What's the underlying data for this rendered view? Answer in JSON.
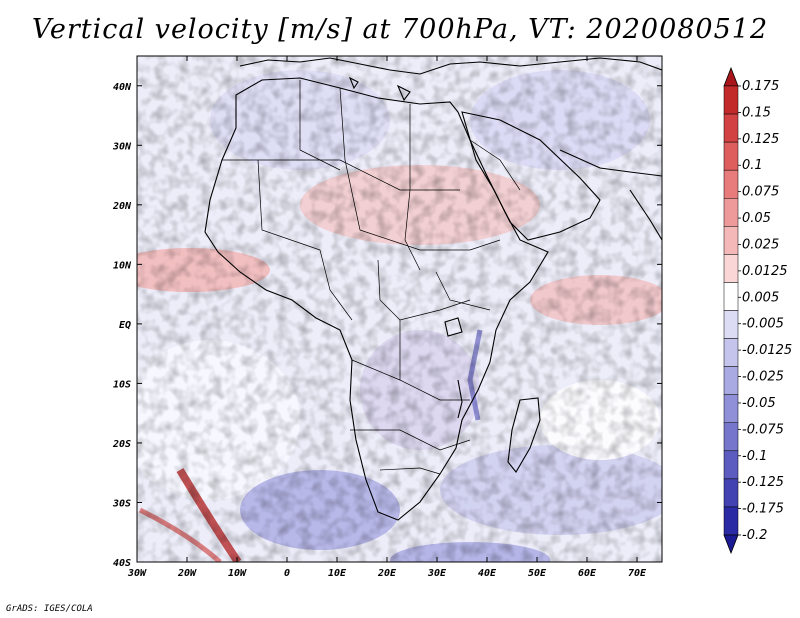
{
  "title": "Vertical velocity [m/s] at 700hPa, VT: 2020080512",
  "credit": "GrADS: IGES/COLA",
  "map": {
    "lon_range": [
      -30,
      75
    ],
    "lat_range": [
      -40,
      45
    ],
    "x_ticks": [
      "30W",
      "20W",
      "10W",
      "0",
      "10E",
      "20E",
      "30E",
      "40E",
      "50E",
      "60E",
      "70E"
    ],
    "y_ticks": [
      "40N",
      "30N",
      "20N",
      "10N",
      "EQ",
      "10S",
      "20S",
      "30S",
      "40S"
    ]
  },
  "colorbar": {
    "levels": [
      "0.175",
      "0.15",
      "0.125",
      "0.1",
      "0.075",
      "0.05",
      "0.025",
      "0.0125",
      "0.005",
      "-0.005",
      "-0.0125",
      "-0.025",
      "-0.05",
      "-0.075",
      "-0.1",
      "-0.125",
      "-0.175",
      "-0.2"
    ],
    "colors": [
      "#a8161c",
      "#c22a2a",
      "#d24242",
      "#de5e5e",
      "#e87c7c",
      "#ef9a9a",
      "#f5b8b8",
      "#fad6d6",
      "#ffffff",
      "#dcdcf4",
      "#c4c4ec",
      "#aaaae2",
      "#9090d8",
      "#7676cc",
      "#5c5cc0",
      "#4242b2",
      "#2a2aa4",
      "#1a1a94"
    ]
  }
}
